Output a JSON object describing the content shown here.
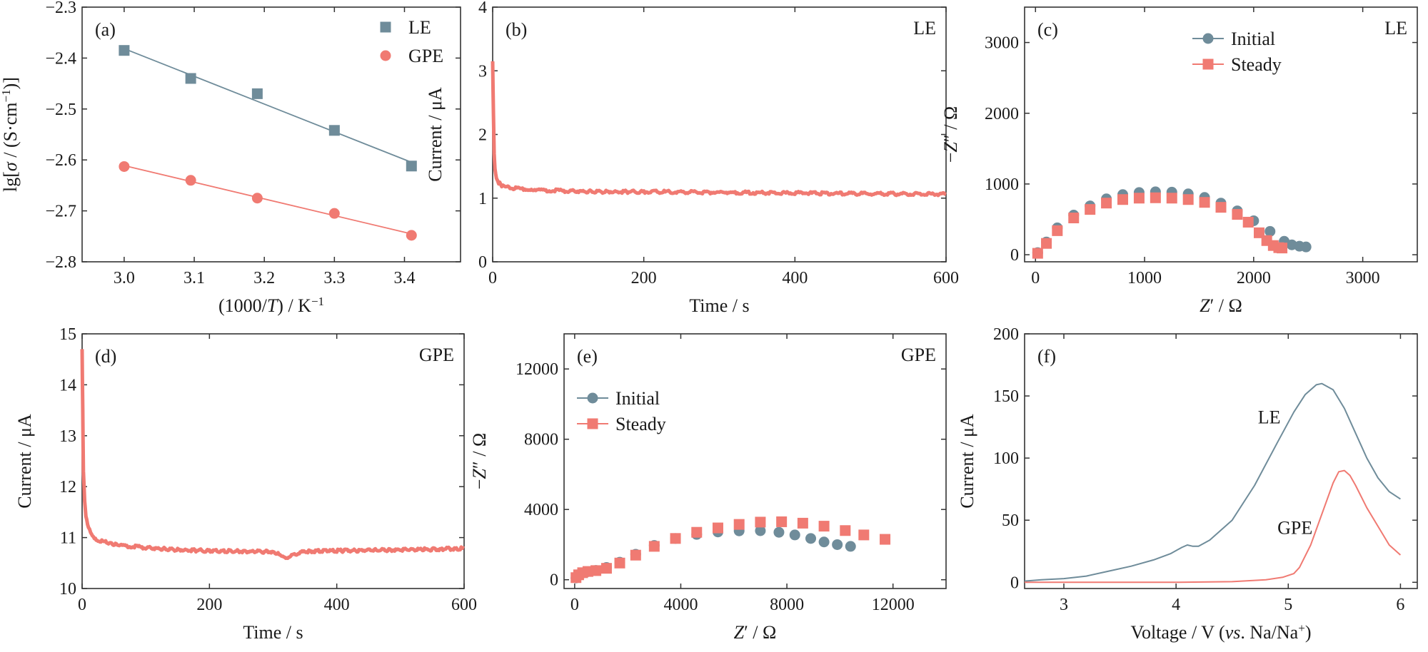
{
  "colors": {
    "le": "#6f8c9a",
    "gpe": "#f07a72",
    "axis": "#333333"
  },
  "chart_data": [
    {
      "id": "a",
      "type": "scatter",
      "panel_label": "(a)",
      "xlabel_parts": [
        "(1000/",
        "T",
        ") / K",
        "−1"
      ],
      "ylabel_parts": [
        "lg[",
        "σ",
        " / (S·cm",
        "−1",
        ")]"
      ],
      "xlim": [
        2.94,
        3.48
      ],
      "ylim": [
        -2.8,
        -2.3
      ],
      "xticks": [
        3.0,
        3.1,
        3.2,
        3.3,
        3.4
      ],
      "xtick_labels": [
        "3.0",
        "3.1",
        "3.2",
        "3.3",
        "3.4"
      ],
      "yticks": [
        -2.8,
        -2.7,
        -2.6,
        -2.5,
        -2.4,
        -2.3
      ],
      "ytick_labels": [
        "−2.8",
        "−2.7",
        "−2.6",
        "−2.5",
        "−2.4",
        "−2.3"
      ],
      "legend": "top-right",
      "series": [
        {
          "name": "LE",
          "marker": "square",
          "color": "#6f8c9a",
          "fit": true,
          "x": [
            3.0,
            3.095,
            3.19,
            3.3,
            3.41
          ],
          "y": [
            -2.385,
            -2.44,
            -2.47,
            -2.542,
            -2.612
          ]
        },
        {
          "name": "GPE",
          "marker": "circle",
          "color": "#f07a72",
          "fit": true,
          "x": [
            3.0,
            3.095,
            3.19,
            3.3,
            3.41
          ],
          "y": [
            -2.613,
            -2.64,
            -2.675,
            -2.705,
            -2.748
          ]
        }
      ]
    },
    {
      "id": "b",
      "type": "line",
      "panel_label": "(b)",
      "tag": "LE",
      "xlabel": "Time / s",
      "ylabel": "Current / μA",
      "xlim": [
        0,
        600
      ],
      "ylim": [
        0,
        4
      ],
      "xticks": [
        0,
        200,
        400,
        600
      ],
      "xtick_labels": [
        "0",
        "200",
        "400",
        "600"
      ],
      "yticks": [
        0,
        1,
        2,
        3,
        4
      ],
      "ytick_labels": [
        "0",
        "1",
        "2",
        "3",
        "4"
      ],
      "series": [
        {
          "color": "#f07a72",
          "x": [
            0,
            1,
            2,
            3,
            5,
            8,
            12,
            20,
            35,
            60,
            100,
            150,
            200,
            300,
            400,
            500,
            600
          ],
          "y": [
            3.15,
            2.3,
            1.7,
            1.45,
            1.3,
            1.24,
            1.2,
            1.17,
            1.15,
            1.13,
            1.11,
            1.1,
            1.1,
            1.09,
            1.08,
            1.07,
            1.06
          ]
        }
      ]
    },
    {
      "id": "c",
      "type": "scatter",
      "panel_label": "(c)",
      "tag": "LE",
      "xlabel_parts": [
        "Z",
        "′ / Ω"
      ],
      "ylabel_parts": [
        "−",
        "Z",
        "″ / Ω"
      ],
      "xlim": [
        -100,
        3500
      ],
      "ylim": [
        -100,
        3500
      ],
      "xticks": [
        0,
        1000,
        2000,
        3000
      ],
      "xtick_labels": [
        "0",
        "1000",
        "2000",
        "3000"
      ],
      "yticks": [
        0,
        1000,
        2000,
        3000
      ],
      "ytick_labels": [
        "0",
        "1000",
        "2000",
        "3000"
      ],
      "legend": "top-center",
      "series": [
        {
          "name": "Initial",
          "marker": "circle",
          "color": "#6f8c9a",
          "x": [
            20,
            100,
            200,
            350,
            500,
            650,
            800,
            950,
            1100,
            1250,
            1400,
            1550,
            1700,
            1850,
            2000,
            2150,
            2280,
            2350,
            2420,
            2480
          ],
          "y": [
            30,
            180,
            380,
            560,
            690,
            790,
            850,
            880,
            890,
            885,
            860,
            810,
            730,
            620,
            480,
            330,
            190,
            140,
            120,
            110
          ]
        },
        {
          "name": "Steady",
          "marker": "square",
          "color": "#f07a72",
          "x": [
            20,
            100,
            200,
            350,
            500,
            650,
            800,
            950,
            1100,
            1250,
            1400,
            1550,
            1700,
            1850,
            1950,
            2050,
            2120,
            2180,
            2230,
            2260
          ],
          "y": [
            20,
            160,
            340,
            520,
            640,
            730,
            780,
            800,
            805,
            800,
            780,
            740,
            670,
            570,
            460,
            310,
            200,
            130,
            100,
            95
          ]
        }
      ]
    },
    {
      "id": "d",
      "type": "line",
      "panel_label": "(d)",
      "tag": "GPE",
      "xlabel": "Time / s",
      "ylabel": "Current / μA",
      "xlim": [
        0,
        600
      ],
      "ylim": [
        10,
        15
      ],
      "xticks": [
        0,
        200,
        400,
        600
      ],
      "xtick_labels": [
        "0",
        "200",
        "400",
        "600"
      ],
      "yticks": [
        10,
        11,
        12,
        13,
        14,
        15
      ],
      "ytick_labels": [
        "10",
        "11",
        "12",
        "13",
        "14",
        "15"
      ],
      "series": [
        {
          "color": "#f07a72",
          "x": [
            0,
            1,
            2,
            4,
            6,
            10,
            15,
            25,
            40,
            60,
            100,
            150,
            200,
            250,
            300,
            320,
            350,
            400,
            450,
            500,
            550,
            600
          ],
          "y": [
            14.7,
            13.5,
            12.3,
            11.7,
            11.4,
            11.2,
            11.05,
            10.95,
            10.9,
            10.85,
            10.8,
            10.76,
            10.74,
            10.73,
            10.72,
            10.6,
            10.73,
            10.74,
            10.75,
            10.76,
            10.77,
            10.79
          ]
        }
      ]
    },
    {
      "id": "e",
      "type": "scatter",
      "panel_label": "(e)",
      "tag": "GPE",
      "xlabel_parts": [
        "Z",
        "′ / Ω"
      ],
      "ylabel_parts": [
        "−",
        "Z",
        "″ / Ω"
      ],
      "xlim": [
        -400,
        14000
      ],
      "ylim": [
        -500,
        14000
      ],
      "xticks": [
        0,
        4000,
        8000,
        12000
      ],
      "xtick_labels": [
        "0",
        "4000",
        "8000",
        "12000"
      ],
      "yticks": [
        0,
        4000,
        8000,
        12000
      ],
      "ytick_labels": [
        "0",
        "4000",
        "8000",
        "12000"
      ],
      "legend": "top-left",
      "series": [
        {
          "name": "Initial",
          "marker": "circle",
          "color": "#6f8c9a",
          "x": [
            50,
            150,
            300,
            500,
            800,
            1200,
            1700,
            2300,
            3000,
            3800,
            4600,
            5400,
            6200,
            7000,
            7700,
            8300,
            8900,
            9400,
            9900,
            10400
          ],
          "y": [
            100,
            250,
            380,
            460,
            530,
            700,
            1000,
            1450,
            1950,
            2350,
            2580,
            2720,
            2780,
            2790,
            2700,
            2550,
            2350,
            2150,
            2000,
            1900
          ]
        },
        {
          "name": "Steady",
          "marker": "square",
          "color": "#f07a72",
          "x": [
            50,
            150,
            300,
            500,
            800,
            1200,
            1700,
            2300,
            3000,
            3800,
            4600,
            5400,
            6200,
            7000,
            7800,
            8600,
            9400,
            10200,
            10900,
            11700
          ],
          "y": [
            120,
            280,
            400,
            470,
            520,
            650,
            950,
            1400,
            1900,
            2350,
            2700,
            2950,
            3150,
            3280,
            3300,
            3220,
            3050,
            2800,
            2550,
            2300
          ]
        }
      ]
    },
    {
      "id": "f",
      "type": "line",
      "panel_label": "(f)",
      "xlabel_parts": [
        "Voltage / V (",
        "vs",
        ". Na/Na",
        "+",
        ")"
      ],
      "ylabel": "Current / μA",
      "xlim": [
        2.65,
        6.15
      ],
      "ylim": [
        -5,
        200
      ],
      "xticks": [
        3,
        4,
        5,
        6
      ],
      "xtick_labels": [
        "3",
        "4",
        "5",
        "6"
      ],
      "yticks": [
        0,
        50,
        100,
        150,
        200
      ],
      "ytick_labels": [
        "0",
        "50",
        "100",
        "150",
        "200"
      ],
      "annotations": [
        {
          "text": "LE",
          "x": 4.83,
          "y": 128
        },
        {
          "text": "GPE",
          "x": 5.06,
          "y": 39
        }
      ],
      "series": [
        {
          "name": "LE",
          "color": "#6f8c9a",
          "x": [
            2.65,
            2.8,
            3.0,
            3.2,
            3.4,
            3.6,
            3.8,
            3.95,
            4.05,
            4.1,
            4.15,
            4.2,
            4.3,
            4.5,
            4.7,
            4.9,
            5.05,
            5.15,
            5.25,
            5.3,
            5.4,
            5.5,
            5.6,
            5.7,
            5.8,
            5.9,
            6.0
          ],
          "y": [
            1,
            2,
            3,
            5,
            9,
            13,
            18,
            23,
            28,
            30,
            29,
            29,
            34,
            50,
            78,
            112,
            137,
            151,
            159,
            160,
            155,
            140,
            120,
            100,
            84,
            73,
            67
          ]
        },
        {
          "name": "GPE",
          "color": "#f07a72",
          "x": [
            2.65,
            3.0,
            3.5,
            4.0,
            4.5,
            4.8,
            4.95,
            5.05,
            5.1,
            5.2,
            5.3,
            5.4,
            5.45,
            5.5,
            5.55,
            5.6,
            5.7,
            5.8,
            5.9,
            6.0
          ],
          "y": [
            0,
            0,
            0,
            0,
            0.5,
            2,
            4,
            7,
            12,
            30,
            55,
            80,
            89,
            90,
            86,
            78,
            60,
            45,
            30,
            22
          ]
        }
      ]
    }
  ]
}
